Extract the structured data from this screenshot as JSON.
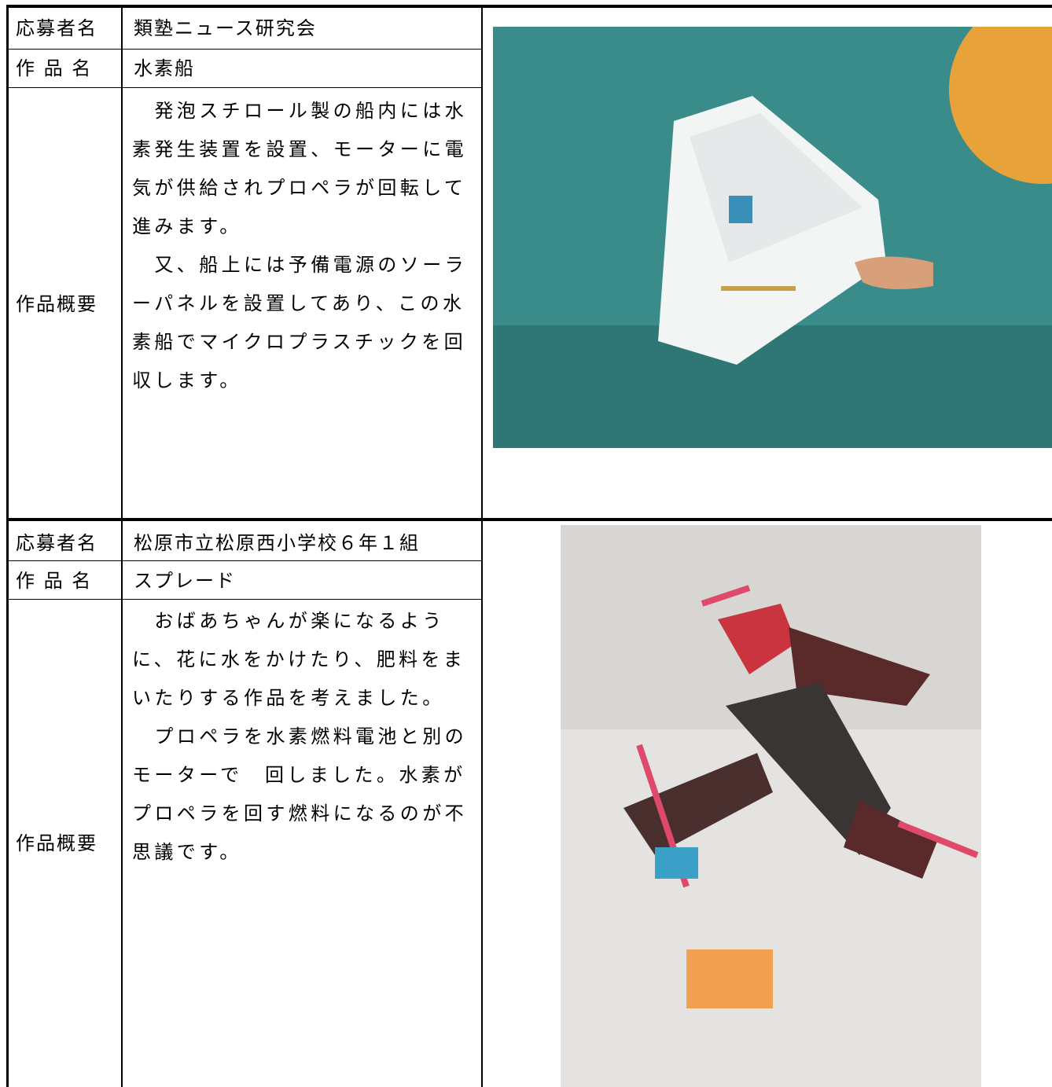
{
  "entries": [
    {
      "applicant_label": "応募者名",
      "applicant": "類塾ニュース研究会",
      "title_label": "作 品 名",
      "title": "水素船",
      "summary_label": "作品概要",
      "summary_lines": [
        "　発泡スチロール製の船内には水",
        "素発生装置を設置、モーターに電",
        "気が供給されプロペラが回転して",
        "進みます。",
        "　又、船上には予備電源のソーラ",
        "ーパネルを設置してあり、この水",
        "素船でマイクロプラスチックを回",
        "収します。"
      ]
    },
    {
      "applicant_label": "応募者名",
      "applicant": "松原市立松原西小学校６年１組",
      "title_label": "作 品 名",
      "title": "スプレード",
      "summary_label": "作品概要",
      "summary_lines": [
        "　おばあちゃんが楽になるよう",
        "に、花に水をかけたり、肥料をま",
        "いたりする作品を考えました。",
        "　プロペラを水素燃料電池と別の",
        "モーターで　回しました。水素が",
        "プロペラを回す燃料になるのが不",
        "思議です。"
      ]
    }
  ]
}
